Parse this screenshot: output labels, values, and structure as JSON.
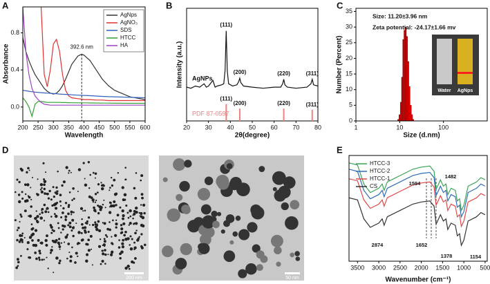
{
  "panel_labels": [
    "A",
    "B",
    "C",
    "D",
    "E"
  ],
  "micrographs": {
    "scale_bars": [
      "200 nm",
      "50 nm"
    ]
  },
  "chart_data": [
    {
      "type": "line",
      "x_label": "Wavelength",
      "y_label": "Absorbance",
      "x": [
        200,
        210,
        220,
        230,
        240,
        250,
        260,
        270,
        280,
        290,
        300,
        310,
        320,
        330,
        340,
        350,
        360,
        380,
        392.6,
        400,
        420,
        440,
        460,
        480,
        500,
        550,
        600
      ],
      "series": [
        {
          "name": "AgNps",
          "color": "#333333",
          "values": [
            0.75,
            0.6,
            0.5,
            0.42,
            0.35,
            0.3,
            0.25,
            0.2,
            0.17,
            0.15,
            0.14,
            0.15,
            0.18,
            0.23,
            0.3,
            0.38,
            0.46,
            0.55,
            0.57,
            0.56,
            0.5,
            0.4,
            0.3,
            0.23,
            0.18,
            0.11,
            0.08
          ]
        },
        {
          "name": "AgNO₃",
          "color": "#e03030",
          "values": [
            null,
            null,
            null,
            null,
            null,
            null,
            1.08,
            0.35,
            0.22,
            0.4,
            0.68,
            0.73,
            0.6,
            0.35,
            0.18,
            0.12,
            0.1,
            0.09,
            0.085,
            0.08,
            0.08,
            0.075,
            0.075,
            0.07,
            0.07,
            0.07,
            0.07
          ]
        },
        {
          "name": "SDS",
          "color": "#3060c0",
          "values": [
            0.18,
            0.175,
            0.17,
            0.165,
            0.16,
            0.158,
            0.155,
            0.152,
            0.15,
            0.148,
            0.145,
            0.143,
            0.14,
            0.138,
            0.136,
            0.134,
            0.132,
            0.128,
            0.126,
            0.125,
            0.122,
            0.118,
            0.115,
            0.112,
            0.11,
            0.105,
            0.1
          ]
        },
        {
          "name": "HTCC",
          "color": "#30a030",
          "values": [
            0.1,
            0.06,
            0.0,
            -0.1,
            0.03,
            0.06,
            0.06,
            0.055,
            0.05,
            0.05,
            0.05,
            0.05,
            0.05,
            0.048,
            0.048,
            0.047,
            0.046,
            0.045,
            0.045,
            0.045,
            0.044,
            0.043,
            0.042,
            0.042,
            0.041,
            0.04,
            0.04
          ]
        },
        {
          "name": "HA",
          "color": "#a040c0",
          "values": [
            1.08,
            0.6,
            0.35,
            0.2,
            0.12,
            0.08,
            0.05,
            0.03,
            0.025,
            0.02,
            0.02,
            0.02,
            0.02,
            0.02,
            0.02,
            0.02,
            0.02,
            0.02,
            0.02,
            0.02,
            0.02,
            0.02,
            0.02,
            0.02,
            0.02,
            0.02,
            0.02
          ]
        }
      ],
      "xlim": [
        200,
        600
      ],
      "xticks": [
        200,
        250,
        300,
        350,
        400,
        450,
        500,
        550,
        600
      ],
      "ylim": [
        -0.15,
        1.08
      ],
      "yticks": [
        {
          "value": 0,
          "label": "0.0"
        },
        {
          "value": 0.4,
          "label": "0.4"
        },
        {
          "value": 0.8,
          "label": "0.8"
        }
      ],
      "legend": "upper right",
      "annotations": [
        {
          "text": "392.6 nm",
          "x": 392.6,
          "y": 0.57
        }
      ]
    },
    {
      "type": "line",
      "x_label": "2θ(degree)",
      "y_label": "Intensity (a.u.)",
      "x": [
        20,
        22,
        24,
        26,
        28,
        29,
        30,
        32,
        33,
        34,
        36,
        37,
        37.6,
        38.1,
        38.6,
        39.2,
        41,
        43,
        43.8,
        44.3,
        44.8,
        46,
        50,
        55,
        60,
        63,
        63.9,
        64.4,
        64.9,
        66,
        70,
        75,
        76.8,
        77.4,
        78,
        80
      ],
      "series": [
        {
          "name": "AgNPs",
          "color": "#111111",
          "values": [
            30,
            29,
            31,
            30,
            33,
            30,
            31,
            36,
            30,
            31,
            32,
            33,
            45,
            80,
            44,
            33,
            31,
            32,
            35,
            38,
            34,
            31,
            30,
            29,
            30,
            30,
            33,
            37,
            32,
            30,
            29,
            30,
            33,
            37,
            32,
            31
          ]
        }
      ],
      "reference": {
        "name": "PDF 87-0597",
        "color": "#f08080",
        "x": [
          38.1,
          44.3,
          64.4,
          77.4
        ],
        "values": [
          15,
          11,
          11,
          10
        ]
      },
      "peak_labels": [
        "(111)",
        "(200)",
        "(220)",
        "(311)"
      ],
      "xlim": [
        20,
        80
      ],
      "xticks": [
        20,
        30,
        40,
        50,
        60,
        70,
        80
      ],
      "ylim": [
        0,
        100
      ]
    },
    {
      "type": "histogram",
      "x_label": "Size  (d.nm)",
      "y_label": "Number (Percent)",
      "log_x": true,
      "bins": [
        9.0,
        9.6,
        10.3,
        11.0,
        11.7,
        12.5,
        13.3,
        14.2,
        15.2,
        16.2,
        17.3,
        18.5,
        19.7,
        21.0
      ],
      "values": [
        0.5,
        2,
        6,
        14,
        26,
        29,
        30,
        27,
        19,
        11,
        5,
        2,
        0.5
      ],
      "color": "#e00000",
      "xlim": [
        1,
        1000
      ],
      "xticks": [
        1,
        10,
        100
      ],
      "ylim": [
        0,
        36
      ],
      "yticks": [
        0,
        5,
        10,
        15,
        20,
        25,
        30,
        35
      ],
      "annotations": [
        "Size: 11.20±3.96 nm",
        "Zeta potential: -24.17±1.66 mv"
      ],
      "inset_labels": [
        "Water",
        "AgNps"
      ]
    },
    {
      "type": "line",
      "x_label": "Wavenumber (cm⁻¹)",
      "x": [
        3700,
        3500,
        3350,
        3200,
        3000,
        2920,
        2874,
        2800,
        2500,
        2200,
        2000,
        1800,
        1700,
        1652,
        1594,
        1550,
        1482,
        1420,
        1378,
        1300,
        1200,
        1154,
        1100,
        1060,
        1000,
        900,
        800,
        700,
        600,
        500
      ],
      "series": [
        {
          "name": "HTCC-3",
          "color": "#3aa655",
          "values": [
            93,
            91,
            73,
            65,
            69,
            73,
            67,
            75,
            81,
            87,
            89,
            90,
            85,
            68,
            73,
            77,
            71,
            73,
            63,
            69,
            67,
            57,
            59,
            48,
            53,
            71,
            73,
            75,
            79,
            77
          ]
        },
        {
          "name": "HTCC-2",
          "color": "#2f6db5",
          "values": [
            87,
            85,
            67,
            59,
            63,
            67,
            61,
            69,
            75,
            81,
            83,
            84,
            79,
            62,
            67,
            71,
            65,
            67,
            57,
            63,
            61,
            51,
            53,
            42,
            47,
            65,
            67,
            69,
            73,
            71
          ]
        },
        {
          "name": "HTCC-1",
          "color": "#e04848",
          "values": [
            78,
            76,
            58,
            50,
            54,
            58,
            52,
            60,
            66,
            72,
            74,
            75,
            70,
            53,
            58,
            62,
            56,
            58,
            48,
            54,
            52,
            42,
            44,
            33,
            38,
            56,
            58,
            60,
            64,
            62
          ]
        },
        {
          "name": "CS",
          "color": "#333333",
          "values": [
            60,
            58,
            40,
            32,
            36,
            40,
            34,
            42,
            48,
            54,
            56,
            57,
            52,
            35,
            40,
            44,
            38,
            40,
            30,
            36,
            34,
            24,
            26,
            15,
            20,
            38,
            40,
            42,
            46,
            44
          ]
        }
      ],
      "xlim": [
        3700,
        450
      ],
      "xticks": [
        3500,
        3000,
        2500,
        2000,
        1500,
        1000,
        500
      ],
      "ylim": [
        0,
        100
      ],
      "legend": "upper left",
      "annotations": [
        "1594",
        "1482",
        "2874",
        "1652",
        "1378",
        "1154"
      ]
    }
  ]
}
